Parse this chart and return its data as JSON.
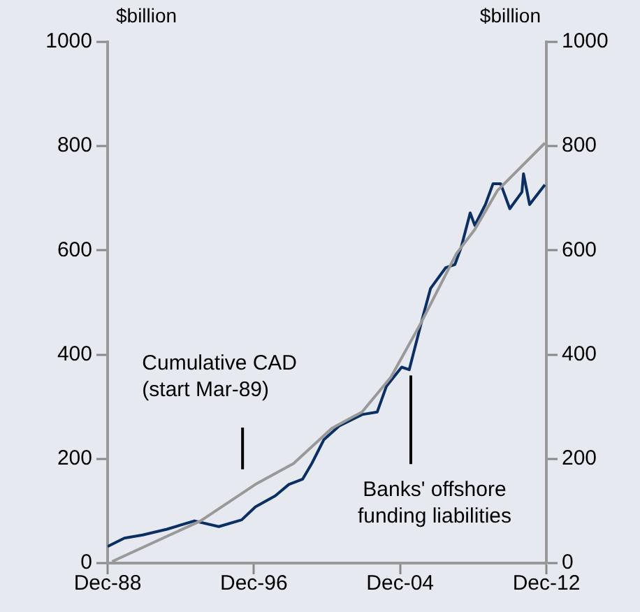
{
  "chart_data": {
    "type": "line",
    "ylabel": "$billion",
    "y2label": "$billion",
    "xlim": [
      "1988-12",
      "2012-12"
    ],
    "xticks": [
      {
        "value": "1988-12",
        "label": "Dec-88"
      },
      {
        "value": "1996-12",
        "label": "Dec-96"
      },
      {
        "value": "2004-12",
        "label": "Dec-04"
      },
      {
        "value": "2012-12",
        "label": "Dec-12"
      }
    ],
    "ylim": [
      0,
      1000
    ],
    "yticks": [
      0,
      200,
      400,
      600,
      800,
      1000
    ],
    "y2lim": [
      0,
      1000
    ],
    "y2ticks": [
      0,
      200,
      400,
      600,
      800,
      1000
    ],
    "grid": false,
    "legend": false,
    "marker": "none",
    "line_style": "solid",
    "series": [
      {
        "name": "Banks' offshore\nfunding liabilities",
        "color": "#0b2f63",
        "x": [
          "1988-12",
          "1989-11",
          "1990-11",
          "1992-03",
          "1993-09",
          "1995-01",
          "1996-04",
          "1997-01",
          "1998-02",
          "1998-11",
          "1999-08",
          "2000-02",
          "2000-10",
          "2001-08",
          "2002-11",
          "2003-09",
          "2004-03",
          "2005-01",
          "2005-06",
          "2006-03",
          "2006-08",
          "2007-06",
          "2007-12",
          "2008-04",
          "2008-10",
          "2009-01",
          "2009-08",
          "2010-01",
          "2010-06",
          "2010-12",
          "2011-08",
          "2011-09",
          "2012-01",
          "2012-11"
        ],
        "values": [
          32,
          48,
          54,
          65,
          81,
          70,
          83,
          108,
          129,
          151,
          161,
          191,
          237,
          263,
          285,
          290,
          339,
          376,
          371,
          473,
          527,
          567,
          573,
          605,
          672,
          648,
          688,
          728,
          728,
          680,
          712,
          747,
          688,
          726
        ]
      },
      {
        "name": "Cumulative CAD\n(start Mar-89)",
        "color": "#999999",
        "x": [
          "1989-03",
          "1994-01",
          "1997-01",
          "1999-02",
          "2001-03",
          "2001-06",
          "2002-11",
          "2004-06",
          "2006-01",
          "2008-01",
          "2009-01",
          "2010-04",
          "2012-11"
        ],
        "values": [
          3,
          81,
          151,
          191,
          258,
          263,
          290,
          357,
          457,
          594,
          640,
          715,
          806
        ]
      }
    ]
  }
}
